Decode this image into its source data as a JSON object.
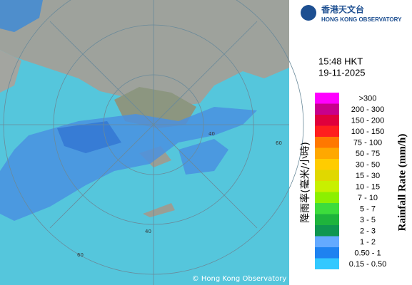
{
  "header": {
    "logo_chinese": "香港天文台",
    "logo_english": "HONG KONG OBSERVATORY"
  },
  "timestamp": {
    "time": "15:48 HKT",
    "date": "19-11-2025"
  },
  "map": {
    "ring_labels": [
      "60",
      "40",
      "60",
      "40"
    ],
    "copyright": "© Hong Kong Observatory"
  },
  "legend": {
    "title_chinese": "降雨率(毫米/小時)",
    "title_english": "Rainfall Rate (mm/h)",
    "items": [
      {
        "label": ">300",
        "color": "#ff00ff"
      },
      {
        "label": "200 - 300",
        "color": "#c8008c"
      },
      {
        "label": "150 - 200",
        "color": "#e0003c"
      },
      {
        "label": "100 - 150",
        "color": "#ff1e1e"
      },
      {
        "label": "75 - 100",
        "color": "#ff7800"
      },
      {
        "label": "50 - 75",
        "color": "#ffa800"
      },
      {
        "label": "30 - 50",
        "color": "#ffcc00"
      },
      {
        "label": "15 - 30",
        "color": "#e0d800"
      },
      {
        "label": "10 - 15",
        "color": "#c8f000"
      },
      {
        "label": "7 - 10",
        "color": "#8cf000"
      },
      {
        "label": "5 - 7",
        "color": "#3cdc3c"
      },
      {
        "label": "3 - 5",
        "color": "#1eb43c"
      },
      {
        "label": "2 - 3",
        "color": "#0f9650"
      },
      {
        "label": "1 - 2",
        "color": "#64aaff"
      },
      {
        "label": "0.50 - 1",
        "color": "#1e82f0"
      },
      {
        "label": "0.15 - 0.50",
        "color": "#32c8ff"
      }
    ]
  }
}
